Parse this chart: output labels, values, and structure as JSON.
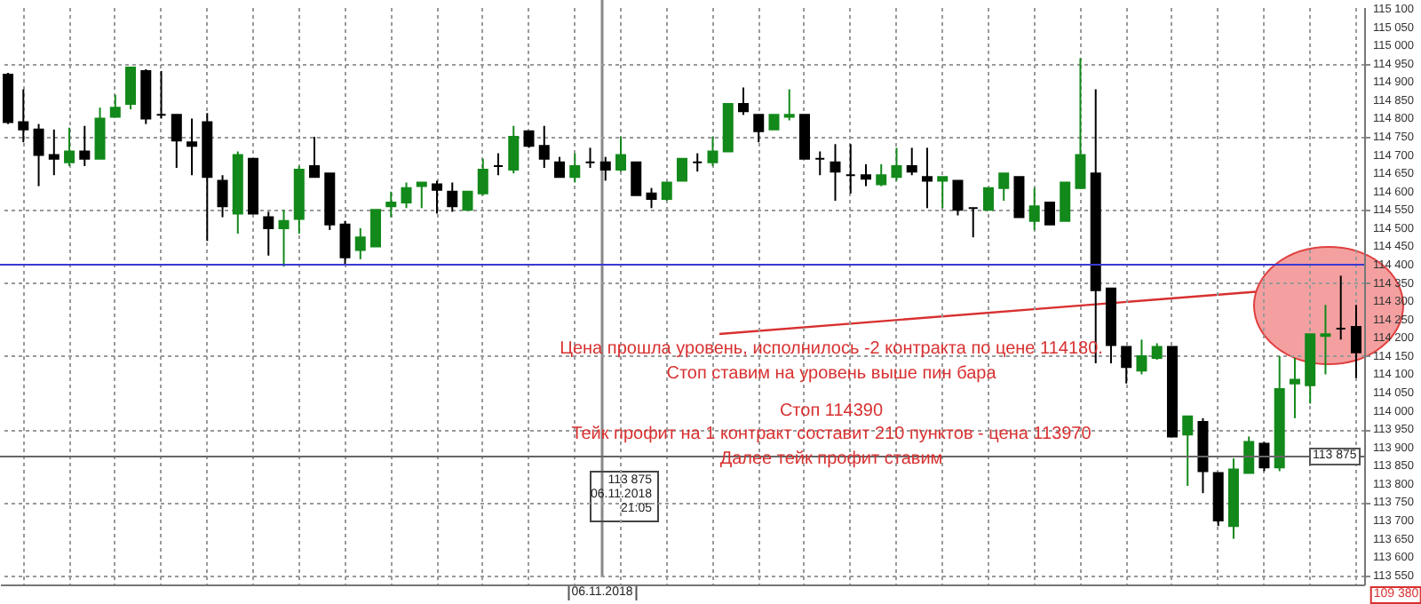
{
  "chart_data": {
    "type": "candlestick",
    "categories": [
      null,
      null,
      null,
      null,
      null,
      null,
      null,
      null,
      null,
      null,
      null,
      null,
      null,
      null,
      null,
      null,
      null,
      null,
      null,
      null,
      null,
      null,
      null,
      null,
      null,
      null,
      null,
      null,
      null,
      null,
      null,
      null,
      null,
      null,
      null,
      null,
      null,
      null,
      null,
      null,
      null,
      null,
      null,
      null,
      null,
      null,
      null,
      null,
      null,
      null,
      null,
      null,
      null,
      null,
      null,
      null,
      null,
      null,
      null,
      null,
      null,
      null,
      null,
      null,
      null,
      null,
      null,
      null,
      null,
      null,
      null,
      null,
      null,
      null,
      null,
      null,
      null,
      null,
      null,
      null,
      null,
      null,
      null,
      null,
      null,
      null,
      null,
      null,
      null
    ],
    "ohlc": [
      [
        114920,
        114925,
        114785,
        114790
      ],
      [
        114790,
        114880,
        114735,
        114770
      ],
      [
        114770,
        114785,
        114615,
        114700
      ],
      [
        114700,
        114770,
        114645,
        114690
      ],
      [
        114680,
        114775,
        114670,
        114710
      ],
      [
        114710,
        114780,
        114670,
        114690
      ],
      [
        114690,
        114830,
        114690,
        114800
      ],
      [
        114805,
        114865,
        114805,
        114830
      ],
      [
        114840,
        114940,
        114825,
        114940
      ],
      [
        114930,
        114935,
        114785,
        114800
      ],
      [
        114810,
        114930,
        114800,
        114810
      ],
      [
        114810,
        114810,
        114665,
        114740
      ],
      [
        114735,
        114800,
        114645,
        114725
      ],
      [
        114790,
        114815,
        114465,
        114640
      ],
      [
        114630,
        114645,
        114530,
        114560
      ],
      [
        114540,
        114710,
        114485,
        114700
      ],
      [
        114690,
        114690,
        114540,
        114540
      ],
      [
        114530,
        114545,
        114425,
        114500
      ],
      [
        114500,
        114550,
        114395,
        114520
      ],
      [
        114525,
        114670,
        114485,
        114660
      ],
      [
        114670,
        114750,
        114640,
        114640
      ],
      [
        114650,
        114650,
        114495,
        114510
      ],
      [
        114510,
        114520,
        114400,
        114420
      ],
      [
        114440,
        114500,
        114415,
        114475
      ],
      [
        114450,
        114550,
        114450,
        114550
      ],
      [
        114560,
        114600,
        114530,
        114570
      ],
      [
        114570,
        114625,
        114555,
        114610
      ],
      [
        114615,
        114625,
        114555,
        114625
      ],
      [
        114620,
        114630,
        114540,
        114605
      ],
      [
        114600,
        114625,
        114545,
        114560
      ],
      [
        114550,
        114600,
        114550,
        114600
      ],
      [
        114595,
        114690,
        114590,
        114660
      ],
      [
        114670,
        114705,
        114645,
        114670
      ],
      [
        114660,
        114780,
        114650,
        114750
      ],
      [
        114765,
        114765,
        114720,
        114725
      ],
      [
        114725,
        114780,
        114665,
        114690
      ],
      [
        114680,
        114695,
        114640,
        114640
      ],
      [
        114640,
        114705,
        114625,
        114670
      ],
      [
        114680,
        114720,
        114665,
        114680
      ],
      [
        114680,
        114695,
        114630,
        114660
      ],
      [
        114660,
        114750,
        114655,
        114700
      ],
      [
        114680,
        114680,
        114590,
        114590
      ],
      [
        114595,
        114610,
        114555,
        114580
      ],
      [
        114580,
        114625,
        114575,
        114625
      ],
      [
        114630,
        114690,
        114630,
        114690
      ],
      [
        114680,
        114705,
        114655,
        114680
      ],
      [
        114680,
        114750,
        114670,
        114710
      ],
      [
        114710,
        114840,
        114710,
        114840
      ],
      [
        114840,
        114885,
        114810,
        114820
      ],
      [
        114810,
        114810,
        114735,
        114765
      ],
      [
        114770,
        114810,
        114770,
        114810
      ],
      [
        114805,
        114880,
        114795,
        114810
      ],
      [
        114810,
        114810,
        114690,
        114690
      ],
      [
        114690,
        114710,
        114645,
        114690
      ],
      [
        114680,
        114730,
        114575,
        114655
      ],
      [
        114645,
        114730,
        114595,
        114645
      ],
      [
        114645,
        114675,
        114615,
        114635
      ],
      [
        114620,
        114675,
        114615,
        114645
      ],
      [
        114640,
        114720,
        114630,
        114670
      ],
      [
        114670,
        114720,
        114645,
        114655
      ],
      [
        114640,
        114720,
        114555,
        114630
      ],
      [
        114630,
        114640,
        114555,
        114640
      ],
      [
        114630,
        114630,
        114535,
        114550
      ],
      [
        114555,
        114555,
        114475,
        114555
      ],
      [
        114550,
        114610,
        114550,
        114610
      ],
      [
        114610,
        114650,
        114575,
        114650
      ],
      [
        114640,
        114640,
        114530,
        114530
      ],
      [
        114520,
        114610,
        114495,
        114560
      ],
      [
        114570,
        114570,
        114510,
        114510
      ],
      [
        114520,
        114625,
        114520,
        114625
      ],
      [
        114610,
        114965,
        114610,
        114700
      ],
      [
        114650,
        114880,
        114130,
        114330
      ],
      [
        114335,
        114335,
        114130,
        114180
      ],
      [
        114175,
        114175,
        114075,
        114120
      ],
      [
        114110,
        114195,
        114100,
        114150
      ],
      [
        114145,
        114185,
        114140,
        114175
      ],
      [
        114175,
        114175,
        113930,
        113930
      ],
      [
        113935,
        113985,
        113795,
        113985
      ],
      [
        113970,
        113980,
        113775,
        113835
      ],
      [
        113830,
        113830,
        113685,
        113700
      ],
      [
        113685,
        113870,
        113650,
        113840
      ],
      [
        113830,
        113930,
        113830,
        113915
      ],
      [
        113910,
        113915,
        113835,
        113845
      ],
      [
        113845,
        114150,
        113835,
        114060
      ],
      [
        114075,
        114145,
        113980,
        114085
      ],
      [
        114070,
        114210,
        114020,
        114210
      ],
      [
        114205,
        114290,
        114100,
        114210
      ],
      [
        114225,
        114370,
        114195,
        114225
      ],
      [
        114230,
        114290,
        114090,
        114160
      ]
    ],
    "colors": [
      "#000000",
      "#000000",
      "#000000",
      "#000000",
      "#12891a",
      "#000000",
      "#12891a",
      "#12891a",
      "#12891a",
      "#000000",
      "#000000",
      "#000000",
      "#000000",
      "#000000",
      "#000000",
      "#12891a",
      "#000000",
      "#000000",
      "#12891a",
      "#12891a",
      "#000000",
      "#000000",
      "#000000",
      "#12891a",
      "#12891a",
      "#12891a",
      "#12891a",
      "#12891a",
      "#000000",
      "#000000",
      "#12891a",
      "#12891a",
      "#000000",
      "#12891a",
      "#000000",
      "#000000",
      "#000000",
      "#12891a",
      "#000000",
      "#000000",
      "#12891a",
      "#000000",
      "#000000",
      "#12891a",
      "#12891a",
      "#000000",
      "#12891a",
      "#12891a",
      "#000000",
      "#000000",
      "#12891a",
      "#12891a",
      "#000000",
      "#000000",
      "#000000",
      "#000000",
      "#000000",
      "#12891a",
      "#12891a",
      "#000000",
      "#000000",
      "#12891a",
      "#000000",
      "#000000",
      "#12891a",
      "#12891a",
      "#000000",
      "#12891a",
      "#000000",
      "#12891a",
      "#12891a",
      "#000000",
      "#000000",
      "#000000",
      "#12891a",
      "#12891a",
      "#000000",
      "#12891a",
      "#000000",
      "#000000",
      "#12891a",
      "#12891a",
      "#000000",
      "#12891a",
      "#12891a",
      "#12891a",
      "#12891a",
      "#000000",
      "#000000"
    ],
    "ylim": [
      113525,
      115105
    ],
    "yticks": [
      {
        "value": 113550,
        "label": "113 550"
      },
      {
        "value": 113600,
        "label": "113 600"
      },
      {
        "value": 113650,
        "label": "113 650"
      },
      {
        "value": 113700,
        "label": "113 700"
      },
      {
        "value": 113750,
        "label": "113 750"
      },
      {
        "value": 113800,
        "label": "113 800"
      },
      {
        "value": 113850,
        "label": "113 850"
      },
      {
        "value": 113900,
        "label": "113 900"
      },
      {
        "value": 113950,
        "label": "113 950"
      },
      {
        "value": 114000,
        "label": "114 000"
      },
      {
        "value": 114050,
        "label": "114 050"
      },
      {
        "value": 114100,
        "label": "114 100"
      },
      {
        "value": 114150,
        "label": "114 150"
      },
      {
        "value": 114200,
        "label": "114 200"
      },
      {
        "value": 114250,
        "label": "114 250"
      },
      {
        "value": 114300,
        "label": "114 300"
      },
      {
        "value": 114350,
        "label": "114 350"
      },
      {
        "value": 114400,
        "label": "114 400"
      },
      {
        "value": 114450,
        "label": "114 450"
      },
      {
        "value": 114500,
        "label": "114 500"
      },
      {
        "value": 114550,
        "label": "114 550"
      },
      {
        "value": 114600,
        "label": "114 600"
      },
      {
        "value": 114650,
        "label": "114 650"
      },
      {
        "value": 114700,
        "label": "114 700"
      },
      {
        "value": 114750,
        "label": "114 750"
      },
      {
        "value": 114800,
        "label": "114 800"
      },
      {
        "value": 114850,
        "label": "114 850"
      },
      {
        "value": 114900,
        "label": "114 900"
      },
      {
        "value": 114950,
        "label": "114 950"
      },
      {
        "value": 115000,
        "label": "115 000"
      },
      {
        "value": 115050,
        "label": "115 050"
      },
      {
        "value": 115100,
        "label": "115 100"
      }
    ],
    "grid": true,
    "tick_labels": "y",
    "ref_lines": [
      {
        "axis": "y",
        "value": 114400,
        "color": "#3a3ad0"
      },
      {
        "axis": "y",
        "value": 113875,
        "label": "113 875",
        "color": "#666666"
      }
    ],
    "annotations": [
      "Цена прошла уровень, исполнилось -2 контракта по цене 114180.",
      "Стоп ставим на уровень выше пин бара",
      "Стоп 114390",
      "Тейк профит на 1 контракт составит 210 пунктов - цена 113970",
      "Далее тейк профит ставим",
      "113 875",
      "06.11.2018",
      "21:05",
      "06.11.2018",
      "109 380"
    ]
  }
}
